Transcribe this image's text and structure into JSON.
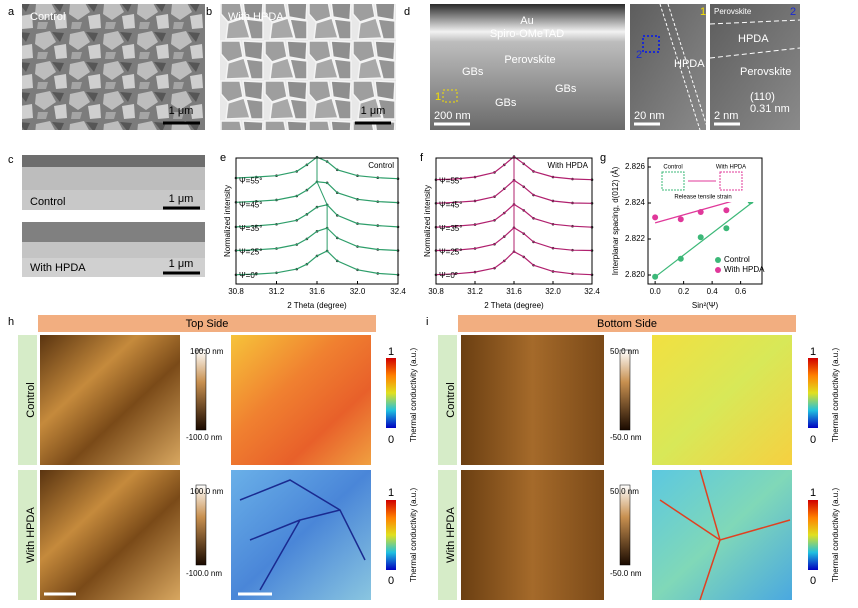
{
  "panels": {
    "a": {
      "label": "a",
      "caption": "Control",
      "scale": "1 μm"
    },
    "b": {
      "label": "b",
      "caption": "With HPDA",
      "scale": "1 μm"
    },
    "c": {
      "label": "c",
      "top_caption": "Control",
      "top_scale": "1 μm",
      "bottom_caption": "With HPDA",
      "bottom_scale": "1 μm"
    },
    "d": {
      "label": "d",
      "au": "Au",
      "spiro": "Spiro-OMeTAD",
      "perovskite": "Perovskite",
      "gbs": [
        "GBs",
        "GBs",
        "GBs"
      ],
      "box1": "1",
      "scale1": "200 nm",
      "box2": "2",
      "hpda": "HPDA",
      "scale2": "20 nm",
      "marker1": "1",
      "perovskite_top": "Perovskite",
      "marker2": "2",
      "hpda_right": "HPDA",
      "perovskite_right": "Perovskite",
      "plane": "(110)",
      "spacing": "0.31 nm",
      "scale3": "2 nm"
    },
    "h": {
      "label": "h",
      "header": "Top Side",
      "rows": [
        "Control",
        "With HPDA"
      ],
      "height_scale": [
        [
          "100.0 nm",
          "-100.0 nm"
        ],
        [
          "100.0 nm",
          "-100.0 nm"
        ]
      ],
      "tc_scale": [
        [
          "1",
          "0"
        ],
        [
          "1",
          "0"
        ]
      ],
      "tc_label": [
        "Thermal conductivity (a.u.)",
        "Thermal conductivity (a.u.)"
      ]
    },
    "i": {
      "label": "i",
      "header": "Bottom Side",
      "rows": [
        "Control",
        "With HPDA"
      ],
      "height_scale": [
        [
          "50.0 nm",
          "-50.0 nm"
        ],
        [
          "50.0 nm",
          "-50.0 nm"
        ]
      ],
      "tc_scale": [
        [
          "1",
          "0"
        ],
        [
          "1",
          "0"
        ]
      ],
      "tc_label": [
        "Thermal conductivity (a.u.)",
        "Thermal conductivity (a.u.)"
      ]
    }
  },
  "chart_data": [
    {
      "type": "line",
      "label": "e",
      "title": "Control",
      "x_label": "2 Theta (degree)",
      "y_label": "Normalized intensity",
      "x": [
        30.8,
        31.0,
        31.2,
        31.4,
        31.5,
        31.6,
        31.7,
        31.8,
        32.0,
        32.2,
        32.4
      ],
      "xlim": [
        30.8,
        32.4
      ],
      "xticks": [
        30.8,
        31.2,
        31.6,
        {
          "value": 32,
          "label": "32.0"
        },
        32.4
      ],
      "ylim": [
        0,
        1
      ],
      "series": [
        {
          "name": "Ψ=55°",
          "color": "#2e9e6a",
          "values": [
            0.35,
            0.38,
            0.42,
            0.55,
            0.75,
            0.98,
            0.85,
            0.6,
            0.42,
            0.36,
            0.33
          ]
        },
        {
          "name": "Ψ=45°",
          "color": "#2e9e6a",
          "values": [
            0.33,
            0.36,
            0.4,
            0.52,
            0.7,
            0.95,
            0.92,
            0.62,
            0.42,
            0.35,
            0.32
          ]
        },
        {
          "name": "Ψ=35°",
          "color": "#2e9e6a",
          "values": [
            0.3,
            0.33,
            0.38,
            0.5,
            0.68,
            0.9,
            0.97,
            0.65,
            0.4,
            0.34,
            0.3
          ]
        },
        {
          "name": "Ψ=25°",
          "color": "#2e9e6a",
          "values": [
            0.3,
            0.32,
            0.36,
            0.48,
            0.65,
            0.88,
            0.98,
            0.68,
            0.42,
            0.33,
            0.3
          ]
        },
        {
          "name": "Ψ=0°",
          "color": "#2e9e6a",
          "values": [
            0.28,
            0.3,
            0.34,
            0.45,
            0.6,
            0.85,
            1.0,
            0.7,
            0.43,
            0.32,
            0.28
          ]
        }
      ]
    },
    {
      "type": "line",
      "label": "f",
      "title": "With HPDA",
      "x_label": "2 Theta (degree)",
      "y_label": "Normalized intensity",
      "x": [
        30.8,
        31.0,
        31.2,
        31.4,
        31.5,
        31.6,
        31.7,
        31.8,
        32.0,
        32.2,
        32.4
      ],
      "xlim": [
        30.8,
        32.4
      ],
      "xticks": [
        30.8,
        31.2,
        31.6,
        {
          "value": 32,
          "label": "32.0"
        },
        32.4
      ],
      "ylim": [
        0,
        1
      ],
      "series": [
        {
          "name": "Ψ=55°",
          "color": "#b0206e",
          "values": [
            0.3,
            0.32,
            0.38,
            0.52,
            0.75,
            1.0,
            0.78,
            0.55,
            0.38,
            0.32,
            0.3
          ]
        },
        {
          "name": "Ψ=45°",
          "color": "#b0206e",
          "values": [
            0.3,
            0.33,
            0.37,
            0.5,
            0.74,
            1.0,
            0.8,
            0.55,
            0.37,
            0.31,
            0.3
          ]
        },
        {
          "name": "Ψ=35°",
          "color": "#b0206e",
          "values": [
            0.29,
            0.32,
            0.37,
            0.5,
            0.72,
            0.98,
            0.8,
            0.56,
            0.38,
            0.32,
            0.29
          ]
        },
        {
          "name": "Ψ=25°",
          "color": "#b0206e",
          "values": [
            0.3,
            0.31,
            0.36,
            0.49,
            0.72,
            0.99,
            0.81,
            0.56,
            0.37,
            0.31,
            0.3
          ]
        },
        {
          "name": "Ψ=0°",
          "color": "#b0206e",
          "values": [
            0.28,
            0.31,
            0.36,
            0.48,
            0.7,
            0.98,
            0.82,
            0.57,
            0.38,
            0.31,
            0.28
          ]
        }
      ]
    },
    {
      "type": "scatter",
      "label": "g",
      "x_label": "Sin²(Ψ)",
      "y_label": "Interplanar spacing, d(012) (Å)",
      "xlim": [
        -0.05,
        0.75
      ],
      "xticks": [
        {
          "value": 0,
          "label": "0.0"
        },
        {
          "value": 0.2,
          "label": "0.2"
        },
        {
          "value": 0.4,
          "label": "0.4"
        },
        {
          "value": 0.6,
          "label": "0.6"
        }
      ],
      "ylim": [
        2.8195,
        2.8265
      ],
      "yticks": [
        {
          "value": 2.82,
          "label": "2.820"
        },
        2.822,
        2.824,
        2.826
      ],
      "inset": {
        "control": "Control",
        "hpda": "With HPDA",
        "arrow": "Release tensile strain"
      },
      "series": [
        {
          "name": "Control",
          "color": "#3cb878",
          "x": [
            0,
            0.18,
            0.32,
            0.5,
            0.67
          ],
          "values": [
            2.8199,
            2.8209,
            2.8221,
            2.8226,
            2.8241
          ]
        },
        {
          "name": "With HPDA",
          "color": "#e0389a",
          "x": [
            0,
            0.18,
            0.32,
            0.5,
            0.67
          ],
          "values": [
            2.8232,
            2.8231,
            2.8235,
            2.8236,
            2.8248
          ]
        }
      ]
    }
  ]
}
